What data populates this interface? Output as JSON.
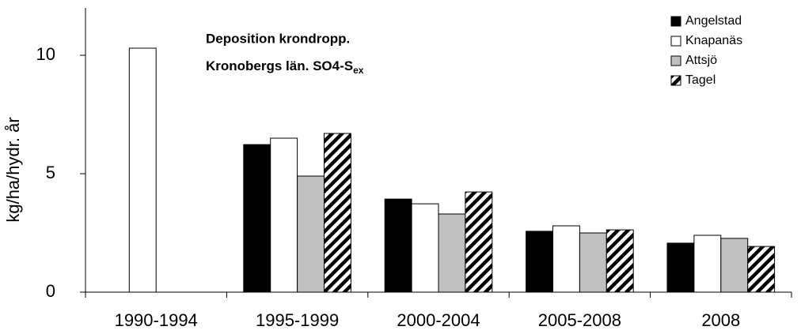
{
  "chart_data": {
    "type": "bar",
    "title_lines": [
      "Deposition krondropp.",
      "Kronobergs län. SO4-S"
    ],
    "title_subscript": "ex",
    "y_label": "kg/ha/hydr. år",
    "categories": [
      "1990-1994",
      "1995-1999",
      "2000-2004",
      "2005-2008",
      "2008"
    ],
    "series": [
      {
        "name": "Angelstad",
        "color": "#000000",
        "values": [
          null,
          6.23,
          3.93,
          2.57,
          2.07
        ]
      },
      {
        "name": "Knapanäs",
        "color": "#ffffff",
        "values": [
          10.3,
          6.5,
          3.73,
          2.8,
          2.4
        ]
      },
      {
        "name": "Attsjö",
        "color": "#c0c0c0",
        "values": [
          null,
          4.9,
          3.3,
          2.5,
          2.27
        ]
      },
      {
        "name": "Tagel",
        "color": "#000000",
        "pattern": "hatch",
        "values": [
          null,
          6.7,
          4.23,
          2.63,
          1.93
        ]
      }
    ],
    "ylim": [
      0,
      12
    ],
    "yticks": [
      0,
      5,
      10
    ],
    "grid": false,
    "legend": "top-right"
  }
}
